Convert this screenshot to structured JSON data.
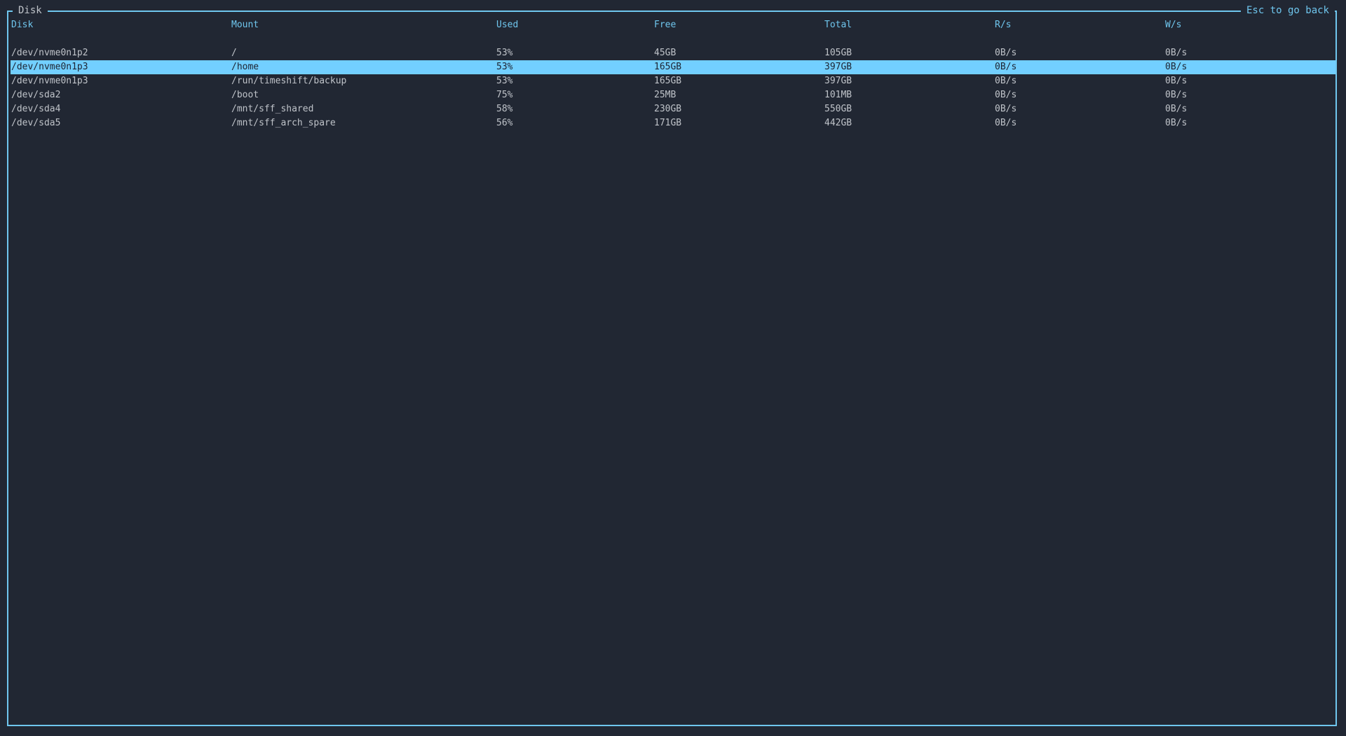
{
  "panel": {
    "title": "Disk",
    "hint": "Esc to go back"
  },
  "colors": {
    "background": "#212733",
    "accent": "#6fc6ee",
    "selection": "#72cfff",
    "text": "#bfc3c9"
  },
  "table": {
    "columns": [
      "Disk",
      "Mount",
      "Used",
      "Free",
      "Total",
      "R/s",
      "W/s"
    ],
    "selected_index": 1,
    "rows": [
      [
        "/dev/nvme0n1p2",
        "/",
        "53%",
        "45GB",
        "105GB",
        "0B/s",
        "0B/s"
      ],
      [
        "/dev/nvme0n1p3",
        "/home",
        "53%",
        "165GB",
        "397GB",
        "0B/s",
        "0B/s"
      ],
      [
        "/dev/nvme0n1p3",
        "/run/timeshift/backup",
        "53%",
        "165GB",
        "397GB",
        "0B/s",
        "0B/s"
      ],
      [
        "/dev/sda2",
        "/boot",
        "75%",
        "25MB",
        "101MB",
        "0B/s",
        "0B/s"
      ],
      [
        "/dev/sda4",
        "/mnt/sff_shared",
        "58%",
        "230GB",
        "550GB",
        "0B/s",
        "0B/s"
      ],
      [
        "/dev/sda5",
        "/mnt/sff_arch_spare",
        "56%",
        "171GB",
        "442GB",
        "0B/s",
        "0B/s"
      ]
    ]
  }
}
